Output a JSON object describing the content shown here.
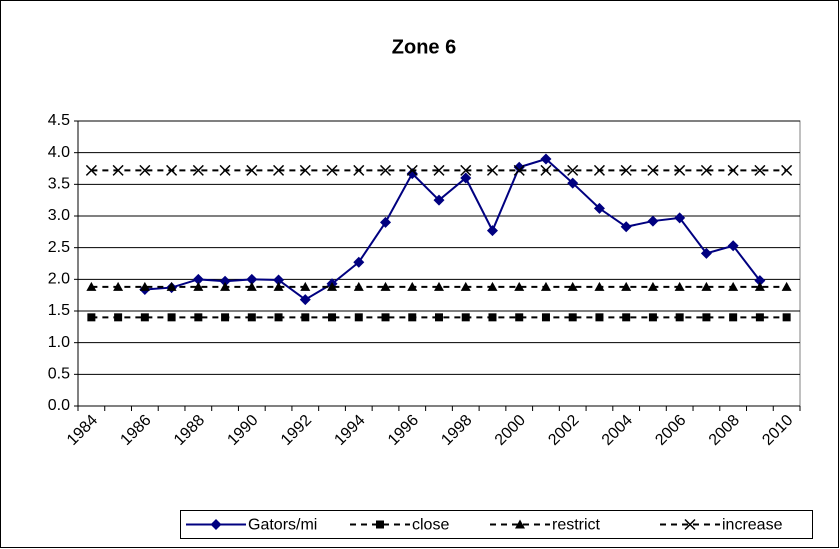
{
  "chart_data": {
    "type": "line",
    "title": "Zone 6",
    "categories": [
      1984,
      null,
      1986,
      null,
      1988,
      null,
      1990,
      null,
      1992,
      null,
      1994,
      null,
      1996,
      null,
      1998,
      null,
      2000,
      null,
      2002,
      null,
      2004,
      null,
      2006,
      null,
      2008,
      null,
      2010
    ],
    "series": [
      {
        "name": "Gators/mi",
        "color": "#000080",
        "marker": "diamond",
        "dashed": false,
        "values": [
          null,
          null,
          1.84,
          1.87,
          2.0,
          1.97,
          2.0,
          1.99,
          1.68,
          1.93,
          2.27,
          2.9,
          3.67,
          3.25,
          3.6,
          2.77,
          3.77,
          3.9,
          3.52,
          3.12,
          2.83,
          2.92,
          2.97,
          2.41,
          2.53,
          1.98,
          null
        ]
      },
      {
        "name": "close",
        "color": "#000000",
        "marker": "square",
        "dashed": true,
        "values": [
          1.4,
          1.4,
          1.4,
          1.4,
          1.4,
          1.4,
          1.4,
          1.4,
          1.4,
          1.4,
          1.4,
          1.4,
          1.4,
          1.4,
          1.4,
          1.4,
          1.4,
          1.4,
          1.4,
          1.4,
          1.4,
          1.4,
          1.4,
          1.4,
          1.4,
          1.4,
          1.4
        ]
      },
      {
        "name": "restrict",
        "color": "#000000",
        "marker": "triangle",
        "dashed": true,
        "values": [
          1.88,
          1.88,
          1.88,
          1.88,
          1.88,
          1.88,
          1.88,
          1.88,
          1.88,
          1.88,
          1.88,
          1.88,
          1.88,
          1.88,
          1.88,
          1.88,
          1.88,
          1.88,
          1.88,
          1.88,
          1.88,
          1.88,
          1.88,
          1.88,
          1.88,
          1.88,
          1.88
        ]
      },
      {
        "name": "increase",
        "color": "#000000",
        "marker": "x",
        "dashed": true,
        "values": [
          3.72,
          3.72,
          3.72,
          3.72,
          3.72,
          3.72,
          3.72,
          3.72,
          3.72,
          3.72,
          3.72,
          3.72,
          3.72,
          3.72,
          3.72,
          3.72,
          3.72,
          3.72,
          3.72,
          3.72,
          3.72,
          3.72,
          3.72,
          3.72,
          3.72,
          3.72,
          3.72
        ]
      }
    ],
    "ylim": [
      0,
      4.5
    ],
    "yticks": [
      {
        "value": 0,
        "label": "0.0"
      },
      0.5,
      {
        "value": 1,
        "label": "1.0"
      },
      1.5,
      {
        "value": 2,
        "label": "2.0"
      },
      2.5,
      {
        "value": 3,
        "label": "3.0"
      },
      3.5,
      {
        "value": 4,
        "label": "4.0"
      },
      4.5
    ],
    "grid": true,
    "legend": "bottom"
  }
}
